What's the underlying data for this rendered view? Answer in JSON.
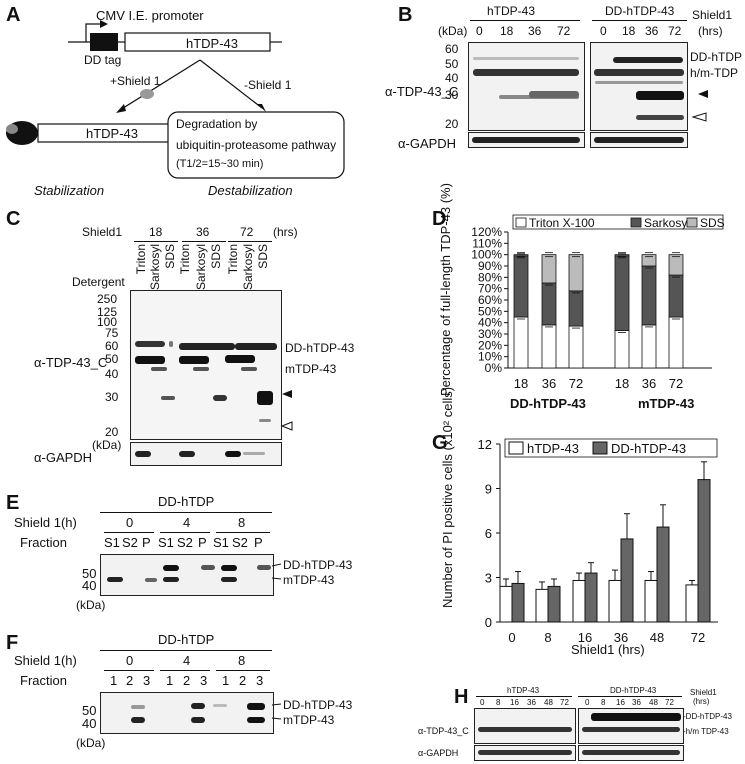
{
  "panels": {
    "A": "A",
    "B": "B",
    "C": "C",
    "D": "D",
    "E": "E",
    "F": "F",
    "G": "G",
    "H": "H"
  },
  "panelA": {
    "promoter": "CMV I.E. promoter",
    "construct": "hTDP-43",
    "ddtag": "DD tag",
    "plus_shield": "+Shield 1",
    "minus_shield": "-Shield 1",
    "stab_box": "hTDP-43",
    "degradation_line1": "Degradation by",
    "degradation_line2": "ubiquitin-proteasome pathway",
    "half_life": "(T1/2=15~30 min)",
    "stabilization": "Stabilization",
    "destabilization": "Destabilization"
  },
  "panelB": {
    "kda": "(kDa)",
    "group1": "hTDP-43",
    "group2": "DD-hTDP-43",
    "shield": "Shield1",
    "hrs": "(hrs)",
    "times": [
      "0",
      "18",
      "36",
      "72"
    ],
    "markers": [
      "60",
      "50",
      "40",
      "30",
      "20"
    ],
    "antibody": "α-TDP-43_C",
    "loading": "α-GAPDH",
    "label_dd": "DD-hTDP",
    "label_hm": "h/m-TDP"
  },
  "panelC": {
    "shield": "Shield1",
    "times": [
      "18",
      "36",
      "72"
    ],
    "hrs": "(hrs)",
    "detergent": "Detergent",
    "lanes": [
      "Triton",
      "Sarkosyl",
      "SDS",
      "Triton",
      "Sarkosyl",
      "SDS",
      "Triton",
      "Sarkosyl",
      "SDS"
    ],
    "markers": [
      "250",
      "150",
      "100",
      "75",
      "50",
      "37",
      "25",
      "20"
    ],
    "marker_extra": [
      "125",
      "60",
      "40",
      "30"
    ],
    "antibody": "α-TDP-43_C",
    "kda": "(kDa)",
    "loading": "α-GAPDH",
    "label_dd": "DD-hTDP-43",
    "label_m": "mTDP-43"
  },
  "panelE": {
    "title": "DD-hTDP",
    "shield": "Shield 1(h)",
    "fraction": "Fraction",
    "times": [
      "0",
      "4",
      "8"
    ],
    "fractions": [
      "S1",
      "S2",
      "P",
      "S1",
      "S2",
      "P",
      "S1",
      "S2",
      "P"
    ],
    "markers": [
      "50",
      "40"
    ],
    "kda": "(kDa)",
    "label_dd": "DD-hTDP-43",
    "label_m": "mTDP-43"
  },
  "panelF": {
    "title": "DD-hTDP",
    "shield": "Shield 1(h)",
    "fraction": "Fraction",
    "times": [
      "0",
      "4",
      "8"
    ],
    "fractions": [
      "1",
      "2",
      "3",
      "1",
      "2",
      "3",
      "1",
      "2",
      "3"
    ],
    "markers": [
      "50",
      "40"
    ],
    "kda": "(kDa)",
    "label_dd": "DD-hTDP-43",
    "label_m": "mTDP-43"
  },
  "panelH": {
    "group1": "hTDP-43",
    "group2": "DD-hTDP-43",
    "shield": "Shield1",
    "hrs": "(hrs)",
    "times": [
      "0",
      "8",
      "16",
      "36",
      "48",
      "72"
    ],
    "antibody": "α-TDP-43_C",
    "loading": "α-GAPDH",
    "label_dd": "-DD-hTDP-43",
    "label_hm": "-h/m TDP-43"
  },
  "chart_data": [
    {
      "id": "D",
      "type": "bar",
      "stacked": true,
      "ylabel": "Percentage of full-length TDP-43 (%)",
      "yticks": [
        "0%",
        "10%",
        "20%",
        "30%",
        "40%",
        "50%",
        "60%",
        "70%",
        "80%",
        "90%",
        "100%",
        "110%",
        "120%"
      ],
      "ylim": [
        0,
        120
      ],
      "categories": [
        "18",
        "36",
        "72",
        "18",
        "36",
        "72"
      ],
      "group_labels": [
        "DD-hTDP-43",
        "mTDP-43"
      ],
      "legend": [
        "Triton X-100",
        "Sarkosyl",
        "SDS"
      ],
      "series": [
        {
          "name": "Triton X-100",
          "color": "#ffffff",
          "values": [
            45,
            38,
            37,
            33,
            38,
            45
          ]
        },
        {
          "name": "Sarkosyl",
          "color": "#555555",
          "values": [
            54,
            37,
            31,
            66,
            52,
            37
          ]
        },
        {
          "name": "SDS",
          "color": "#bbbbbb",
          "values": [
            1,
            25,
            32,
            1,
            10,
            18
          ]
        }
      ]
    },
    {
      "id": "G",
      "type": "bar",
      "xlabel": "Shield1 (hrs)",
      "ylabel": "Number of PI positive cells (x10² cells)",
      "yticks": [
        "0",
        "3",
        "6",
        "9",
        "12"
      ],
      "ylim": [
        0,
        12
      ],
      "categories": [
        "0",
        "8",
        "16",
        "36",
        "48",
        "72"
      ],
      "legend": [
        "hTDP-43",
        "DD-hTDP-43"
      ],
      "series": [
        {
          "name": "hTDP-43",
          "color": "#ffffff",
          "values": [
            2.4,
            2.2,
            2.8,
            2.8,
            2.8,
            2.5
          ],
          "err": [
            0.5,
            0.5,
            0.5,
            0.7,
            0.6,
            0.3
          ]
        },
        {
          "name": "DD-hTDP-43",
          "color": "#666666",
          "values": [
            2.6,
            2.4,
            3.3,
            5.6,
            6.4,
            9.6
          ],
          "err": [
            0.8,
            0.5,
            0.7,
            1.7,
            1.5,
            1.2
          ]
        }
      ]
    }
  ]
}
